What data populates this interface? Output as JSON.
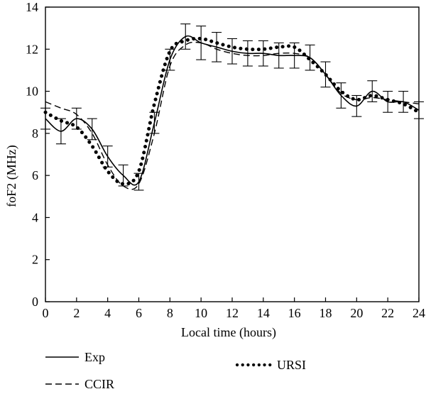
{
  "chart_data": {
    "type": "line",
    "title": "",
    "xlabel": "Local time (hours)",
    "ylabel": "foF2 (MHz)",
    "xlim": [
      0,
      24
    ],
    "ylim": [
      0,
      14
    ],
    "x_ticks": [
      "0",
      "2",
      "4",
      "6",
      "8",
      "10",
      "12",
      "14",
      "16",
      "18",
      "20",
      "22",
      "24"
    ],
    "y_ticks": [
      "0",
      "2",
      "4",
      "6",
      "8",
      "10",
      "12",
      "14"
    ],
    "grid": false,
    "legend_position": "bottom",
    "series": [
      {
        "name": "Exp",
        "style": "solid",
        "color": "#000000",
        "x": [
          0,
          1,
          2,
          3,
          4,
          5,
          6,
          7,
          8,
          9,
          10,
          11,
          12,
          13,
          14,
          15,
          16,
          17,
          18,
          19,
          20,
          21,
          22,
          23,
          24
        ],
        "y": [
          8.7,
          8.1,
          8.7,
          8.2,
          6.9,
          6.0,
          5.7,
          8.5,
          11.5,
          12.6,
          12.3,
          12.1,
          11.9,
          11.8,
          11.8,
          11.7,
          11.7,
          11.6,
          10.8,
          9.8,
          9.3,
          10.0,
          9.5,
          9.5,
          9.1
        ],
        "error": [
          0.5,
          0.6,
          0.5,
          0.5,
          0.5,
          0.5,
          0.4,
          0.5,
          0.5,
          0.6,
          0.8,
          0.7,
          0.6,
          0.6,
          0.6,
          0.6,
          0.6,
          0.6,
          0.6,
          0.6,
          0.5,
          0.5,
          0.5,
          0.5,
          0.4
        ]
      },
      {
        "name": "CCIR",
        "style": "dashed",
        "color": "#000000",
        "x": [
          0,
          1,
          2,
          3,
          4,
          5,
          6,
          7,
          8,
          9,
          10,
          11,
          12,
          13,
          14,
          15,
          16,
          17,
          18,
          19,
          20,
          21,
          22,
          23,
          24
        ],
        "y": [
          9.5,
          9.2,
          8.9,
          8.0,
          6.5,
          5.5,
          5.6,
          8.0,
          11.2,
          12.2,
          12.3,
          12.0,
          11.8,
          11.7,
          11.7,
          11.8,
          11.8,
          11.6,
          10.8,
          9.9,
          9.6,
          9.7,
          9.6,
          9.5,
          9.4
        ]
      },
      {
        "name": "URSI",
        "style": "dotted",
        "color": "#000000",
        "x": [
          0,
          1,
          2,
          3,
          4,
          5,
          6,
          7,
          8,
          9,
          10,
          11,
          12,
          13,
          14,
          15,
          16,
          17,
          18,
          19,
          20,
          21,
          22,
          23,
          24
        ],
        "y": [
          9.0,
          8.6,
          8.3,
          7.4,
          6.2,
          5.6,
          6.2,
          9.4,
          11.9,
          12.4,
          12.5,
          12.3,
          12.1,
          12.0,
          12.0,
          12.1,
          12.1,
          11.5,
          10.8,
          10.0,
          9.6,
          9.8,
          9.6,
          9.4,
          9.0
        ]
      }
    ]
  }
}
